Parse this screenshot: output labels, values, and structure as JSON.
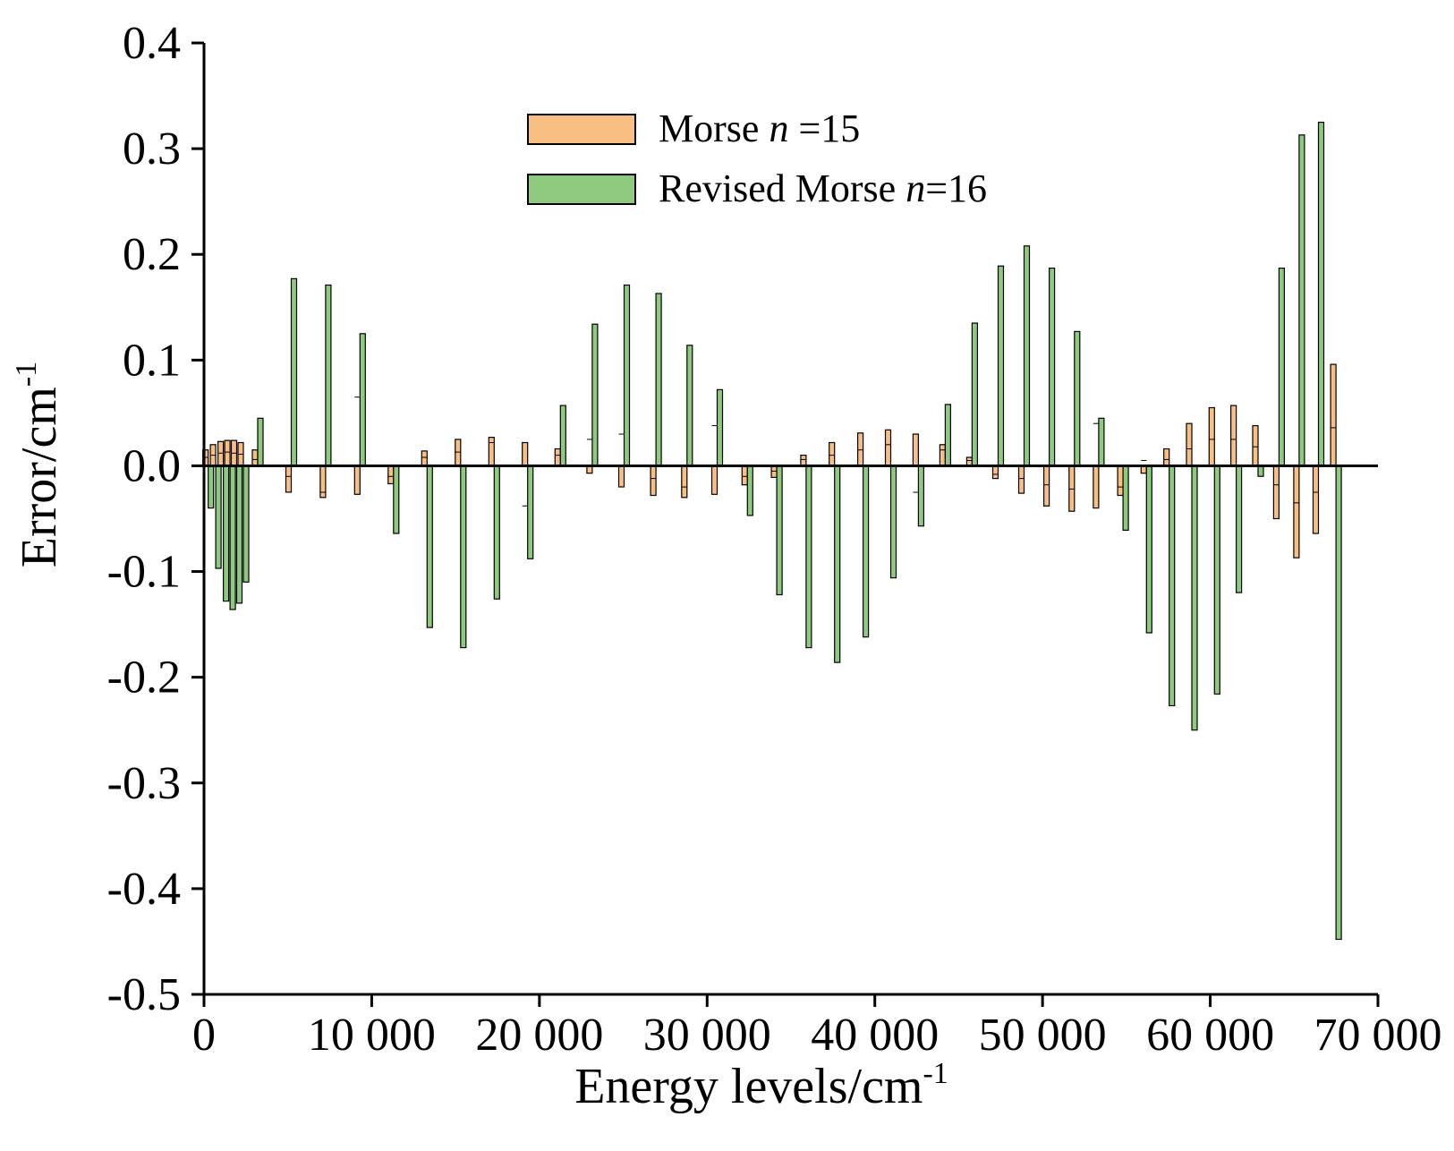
{
  "chart_data": {
    "type": "bar",
    "title": "",
    "xlabel": "Energy levels/cm",
    "xlabel_sup": "-1",
    "ylabel": "Error/cm",
    "ylabel_sup": "-1",
    "xlim": [
      0,
      70000
    ],
    "ylim": [
      -0.5,
      0.4
    ],
    "xticks": [
      0,
      10000,
      20000,
      30000,
      40000,
      50000,
      60000,
      70000
    ],
    "xtick_labels": [
      "0",
      "10 000",
      "20 000",
      "30 000",
      "40 000",
      "50 000",
      "60 000",
      "70 000"
    ],
    "yticks": [
      -0.5,
      -0.4,
      -0.3,
      -0.2,
      -0.1,
      0.0,
      0.1,
      0.2,
      0.3,
      0.4
    ],
    "ytick_labels": [
      "-0.5",
      "-0.4",
      "-0.3",
      "-0.2",
      "-0.1",
      "0.0",
      "0.1",
      "0.2",
      "0.3",
      "0.4"
    ],
    "grid": false,
    "legend_position": "top-center",
    "x": [
      250,
      700,
      1150,
      1550,
      1950,
      2350,
      3200,
      5200,
      7250,
      9300,
      11300,
      13300,
      15300,
      17300,
      19300,
      21250,
      23150,
      25050,
      26950,
      28800,
      30600,
      32400,
      34150,
      35900,
      37600,
      39300,
      40950,
      42600,
      44200,
      45800,
      47350,
      48900,
      50400,
      51900,
      53350,
      54800,
      56200,
      57550,
      58900,
      60250,
      61550,
      62850,
      64100,
      65300,
      66450,
      67500
    ],
    "series": [
      {
        "name": "Morse n =15",
        "name_parts": [
          "Morse ",
          "n",
          " =15"
        ],
        "color": "#f9bf82",
        "values": [
          0.015,
          0.02,
          0.023,
          0.024,
          0.024,
          0.022,
          0.015,
          -0.025,
          -0.03,
          -0.027,
          -0.017,
          0.014,
          0.025,
          0.027,
          0.022,
          0.016,
          -0.007,
          -0.02,
          -0.028,
          -0.03,
          -0.027,
          -0.018,
          -0.011,
          0.01,
          0.022,
          0.031,
          0.034,
          0.03,
          0.02,
          0.008,
          -0.012,
          -0.026,
          -0.038,
          -0.043,
          -0.04,
          -0.028,
          -0.007,
          0.016,
          0.04,
          0.055,
          0.057,
          0.038,
          -0.05,
          -0.087,
          -0.064,
          0.096
        ]
      },
      {
        "name": "Revised Morse n=16",
        "name_parts": [
          "Revised Morse ",
          "n",
          "=16"
        ],
        "color": "#8dca7e",
        "values": [
          -0.04,
          -0.097,
          -0.128,
          -0.136,
          -0.13,
          -0.11,
          0.045,
          0.177,
          0.171,
          0.125,
          -0.064,
          -0.153,
          -0.172,
          -0.126,
          -0.088,
          0.057,
          0.134,
          0.171,
          0.163,
          0.114,
          0.072,
          -0.047,
          -0.122,
          -0.172,
          -0.186,
          -0.162,
          -0.106,
          -0.057,
          0.058,
          0.135,
          0.189,
          0.208,
          0.187,
          0.127,
          0.045,
          -0.061,
          -0.158,
          -0.227,
          -0.25,
          -0.216,
          -0.12,
          -0.01,
          0.187,
          0.313,
          0.325,
          -0.448
        ]
      }
    ],
    "overlap_values_morse": [
      0.008,
      0.01,
      0.012,
      0.013,
      0.012,
      0.011,
      0.006,
      -0.01,
      -0.025,
      0.065,
      -0.01,
      0.008,
      0.013,
      0.022,
      -0.038,
      0.01,
      0.025,
      0.03,
      -0.012,
      -0.02,
      0.038,
      -0.01,
      -0.005,
      0.006,
      0.01,
      0.015,
      0.02,
      -0.025,
      0.015,
      0.005,
      -0.008,
      -0.012,
      -0.018,
      -0.022,
      0.04,
      -0.02,
      0.005,
      0.006,
      0.016,
      0.025,
      0.025,
      0.018,
      -0.018,
      -0.035,
      -0.025,
      0.036
    ]
  }
}
